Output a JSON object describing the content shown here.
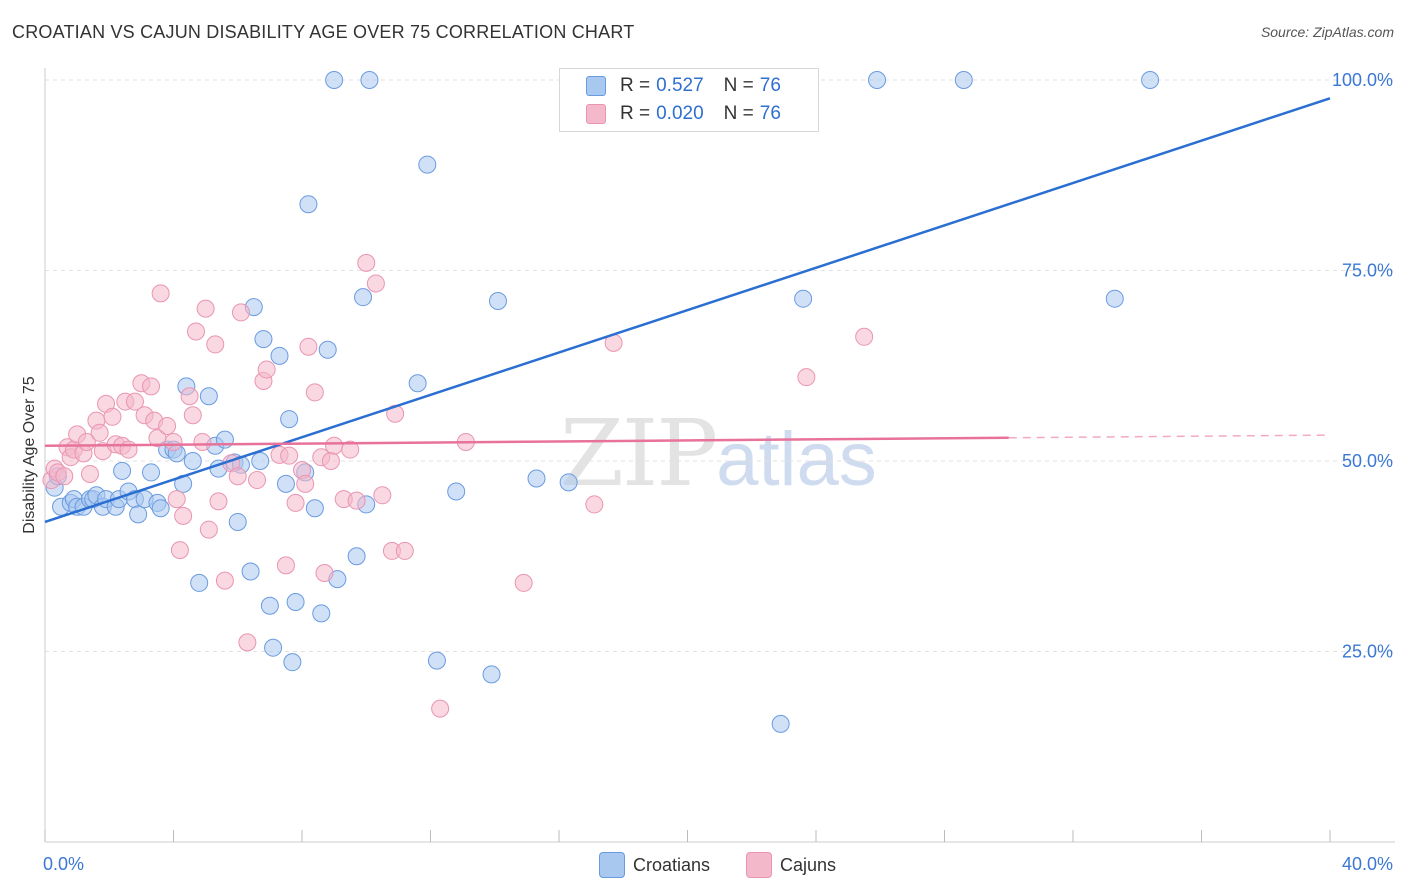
{
  "header": {
    "title": "CROATIAN VS CAJUN DISABILITY AGE OVER 75 CORRELATION CHART",
    "source": "Source: ZipAtlas.com"
  },
  "watermark": {
    "zip": "ZIP",
    "atlas": "atlas"
  },
  "legend": {
    "rows": [
      {
        "r_label": "R =",
        "r_value": "0.527",
        "n_label": "N =",
        "n_value": "76"
      },
      {
        "r_label": "R =",
        "r_value": "0.020",
        "n_label": "N =",
        "n_value": "76"
      }
    ]
  },
  "bottom_legend": {
    "croatians": "Croatians",
    "cajuns": "Cajuns"
  },
  "colors": {
    "blue_fill": "#a9c8f0",
    "blue_stroke": "#6a9be0",
    "blue_line": "#2a6fd1",
    "pink_fill": "#f4b8cb",
    "pink_stroke": "#e995b2",
    "pink_line": "#e8729a",
    "axis_text": "#3a78d4"
  },
  "chart_data": {
    "type": "scatter",
    "title": "CROATIAN VS CAJUN DISABILITY AGE OVER 75 CORRELATION CHART",
    "xlabel": "",
    "ylabel": "Disability Age Over 75",
    "xlim": [
      0,
      40
    ],
    "ylim": [
      0,
      100
    ],
    "x_tick_labels": [
      "0.0%",
      "40.0%"
    ],
    "y_tick_labels": [
      "25.0%",
      "50.0%",
      "75.0%",
      "100.0%"
    ],
    "y_ticks": [
      25,
      50,
      75,
      100
    ],
    "grid": true,
    "legend_position": "top-center",
    "series": [
      {
        "name": "Croatians",
        "r": 0.527,
        "n": 76,
        "trend": {
          "x": [
            0,
            40
          ],
          "y": [
            42,
            97.6
          ],
          "dashed_from": null
        },
        "points": [
          [
            0.3,
            46.5
          ],
          [
            0.4,
            48
          ],
          [
            0.5,
            44
          ],
          [
            0.8,
            44.5
          ],
          [
            0.9,
            45
          ],
          [
            1.0,
            44
          ],
          [
            1.2,
            44
          ],
          [
            1.4,
            45
          ],
          [
            1.5,
            45
          ],
          [
            1.6,
            45.5
          ],
          [
            1.8,
            44
          ],
          [
            1.9,
            45
          ],
          [
            2.2,
            44
          ],
          [
            2.3,
            45
          ],
          [
            2.4,
            48.7
          ],
          [
            2.6,
            46
          ],
          [
            2.8,
            45
          ],
          [
            2.9,
            43
          ],
          [
            3.1,
            45
          ],
          [
            3.3,
            48.5
          ],
          [
            3.5,
            44.5
          ],
          [
            3.6,
            43.8
          ],
          [
            3.8,
            51.5
          ],
          [
            4.0,
            51.5
          ],
          [
            4.1,
            51
          ],
          [
            4.3,
            47
          ],
          [
            4.4,
            59.8
          ],
          [
            4.6,
            50
          ],
          [
            4.8,
            34
          ],
          [
            5.1,
            58.5
          ],
          [
            5.3,
            52
          ],
          [
            5.4,
            49
          ],
          [
            5.6,
            52.8
          ],
          [
            5.9,
            49.8
          ],
          [
            6.0,
            42
          ],
          [
            6.1,
            49.5
          ],
          [
            6.4,
            35.5
          ],
          [
            6.5,
            70.2
          ],
          [
            6.7,
            50
          ],
          [
            6.8,
            66
          ],
          [
            7.0,
            31
          ],
          [
            7.1,
            25.5
          ],
          [
            7.3,
            63.8
          ],
          [
            7.5,
            47
          ],
          [
            7.6,
            55.5
          ],
          [
            7.7,
            23.6
          ],
          [
            7.8,
            31.5
          ],
          [
            8.1,
            48.5
          ],
          [
            8.2,
            83.7
          ],
          [
            8.4,
            43.8
          ],
          [
            8.6,
            30
          ],
          [
            8.8,
            64.6
          ],
          [
            9.0,
            100
          ],
          [
            9.1,
            34.5
          ],
          [
            9.7,
            37.5
          ],
          [
            9.9,
            71.5
          ],
          [
            10.0,
            44.3
          ],
          [
            10.1,
            100
          ],
          [
            11.6,
            60.2
          ],
          [
            11.9,
            88.9
          ],
          [
            12.2,
            23.8
          ],
          [
            12.8,
            46
          ],
          [
            13.9,
            22
          ],
          [
            14.1,
            71
          ],
          [
            15.3,
            47.7
          ],
          [
            16.3,
            47.2
          ],
          [
            17.9,
            100
          ],
          [
            22.9,
            15.5
          ],
          [
            23.6,
            71.3
          ],
          [
            25.9,
            100
          ],
          [
            28.6,
            100
          ],
          [
            33.3,
            71.3
          ],
          [
            34.4,
            100
          ],
          [
            23.8,
            96
          ],
          [
            23.0,
            100
          ],
          [
            17.5,
            99
          ]
        ]
      },
      {
        "name": "Cajuns",
        "r": 0.02,
        "n": 76,
        "trend": {
          "x": [
            0,
            40
          ],
          "y": [
            52,
            53.4
          ],
          "dashed_from": 30
        },
        "points": [
          [
            0.2,
            47.5
          ],
          [
            0.3,
            49
          ],
          [
            0.4,
            48.5
          ],
          [
            0.6,
            48
          ],
          [
            0.7,
            51.8
          ],
          [
            0.8,
            50.5
          ],
          [
            0.9,
            51.5
          ],
          [
            1.0,
            53.5
          ],
          [
            1.2,
            51
          ],
          [
            1.3,
            52.5
          ],
          [
            1.4,
            48.3
          ],
          [
            1.6,
            55.3
          ],
          [
            1.7,
            53.7
          ],
          [
            1.8,
            51.3
          ],
          [
            1.9,
            57.5
          ],
          [
            2.1,
            55.8
          ],
          [
            2.2,
            52.2
          ],
          [
            2.4,
            52
          ],
          [
            2.5,
            57.8
          ],
          [
            2.6,
            51.5
          ],
          [
            2.8,
            57.8
          ],
          [
            3.0,
            60.2
          ],
          [
            3.1,
            56
          ],
          [
            3.3,
            59.8
          ],
          [
            3.4,
            55.3
          ],
          [
            3.5,
            53
          ],
          [
            3.6,
            72
          ],
          [
            3.8,
            54.6
          ],
          [
            4.0,
            52.5
          ],
          [
            4.1,
            45
          ],
          [
            4.2,
            38.3
          ],
          [
            4.3,
            42.8
          ],
          [
            4.5,
            58.5
          ],
          [
            4.6,
            56
          ],
          [
            4.7,
            67
          ],
          [
            4.9,
            52.5
          ],
          [
            5.0,
            70
          ],
          [
            5.1,
            41
          ],
          [
            5.3,
            65.3
          ],
          [
            5.4,
            44.7
          ],
          [
            5.6,
            34.3
          ],
          [
            5.8,
            49.7
          ],
          [
            6.0,
            48
          ],
          [
            6.1,
            69.5
          ],
          [
            6.3,
            26.2
          ],
          [
            6.6,
            47.5
          ],
          [
            6.8,
            60.5
          ],
          [
            6.9,
            62
          ],
          [
            7.3,
            50.8
          ],
          [
            7.5,
            36.3
          ],
          [
            7.6,
            50.7
          ],
          [
            7.8,
            44.5
          ],
          [
            8.0,
            48.8
          ],
          [
            8.1,
            47
          ],
          [
            8.2,
            65
          ],
          [
            8.4,
            59
          ],
          [
            8.6,
            50.5
          ],
          [
            8.7,
            35.3
          ],
          [
            8.9,
            50
          ],
          [
            9.0,
            52
          ],
          [
            9.3,
            45
          ],
          [
            9.5,
            51.5
          ],
          [
            9.7,
            44.8
          ],
          [
            10.0,
            76
          ],
          [
            10.3,
            73.3
          ],
          [
            10.5,
            45.5
          ],
          [
            10.8,
            38.2
          ],
          [
            10.9,
            56.2
          ],
          [
            11.2,
            38.2
          ],
          [
            12.3,
            17.5
          ],
          [
            13.1,
            52.5
          ],
          [
            14.9,
            34
          ],
          [
            17.1,
            44.3
          ],
          [
            17.7,
            65.5
          ],
          [
            23.7,
            61
          ],
          [
            25.5,
            66.3
          ]
        ]
      }
    ]
  }
}
